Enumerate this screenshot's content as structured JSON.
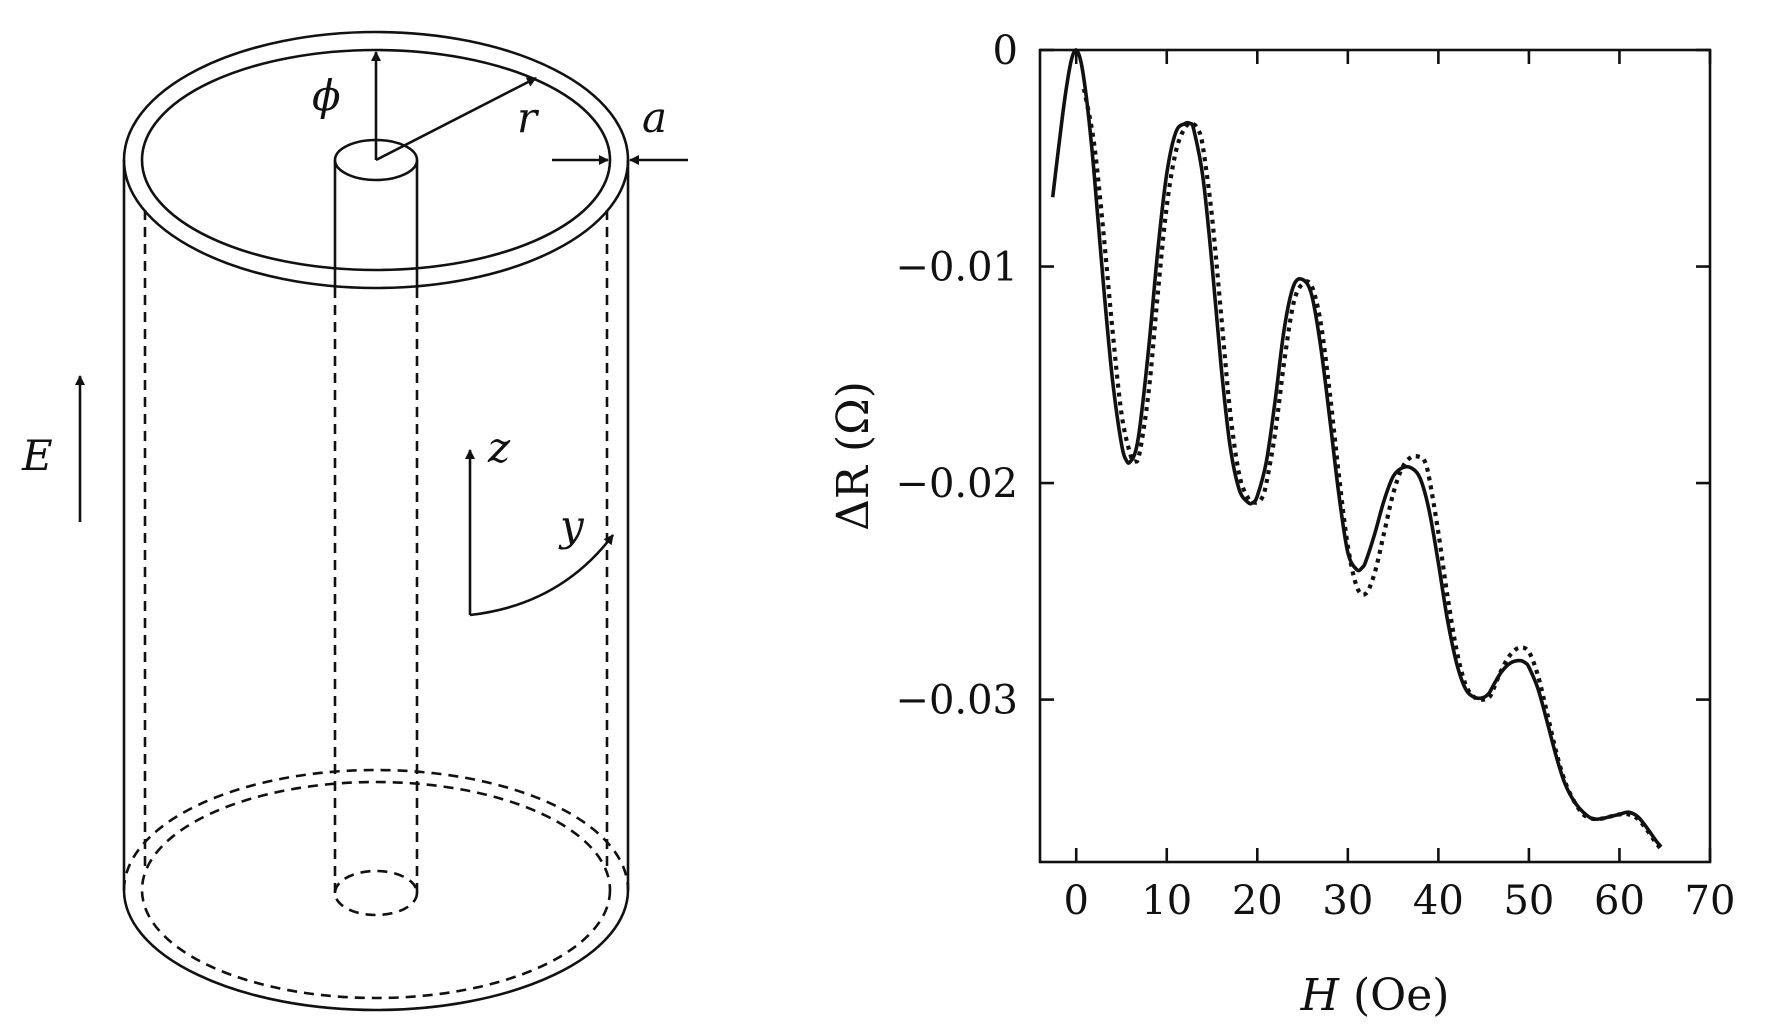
{
  "diagram": {
    "labels": {
      "phi": "ϕ",
      "r": "r",
      "a": "a",
      "E": "E",
      "z": "z",
      "y": "y"
    }
  },
  "chart_data": {
    "type": "line",
    "title": "",
    "xlabel_var": "H",
    "xlabel_unit": "(Oe)",
    "ylabel_var": "ΔR",
    "ylabel_unit": "(Ω)",
    "xlim": [
      -4,
      70
    ],
    "ylim": [
      -0.0375,
      0
    ],
    "xticks": [
      0,
      10,
      20,
      30,
      40,
      50,
      60,
      70
    ],
    "xtick_labels": [
      "0",
      "10",
      "20",
      "30",
      "40",
      "50",
      "60",
      "70"
    ],
    "yticks": [
      0,
      -0.01,
      -0.02,
      -0.03
    ],
    "ytick_labels": [
      "0",
      "−0.01",
      "−0.02",
      "−0.03"
    ],
    "grid": false,
    "legend": "none",
    "series": [
      {
        "style": "solid",
        "color": "#111111",
        "x": [
          -2.6,
          -2,
          -1.5,
          -1,
          -0.5,
          0,
          0.5,
          1,
          1.5,
          2,
          3,
          4,
          5,
          5.6,
          6,
          6.5,
          7,
          8,
          9,
          10,
          11,
          12,
          12.6,
          13,
          14,
          15,
          16,
          17,
          18,
          19,
          19.5,
          20,
          21,
          22,
          23,
          24,
          25,
          26,
          27,
          28,
          29,
          30,
          31,
          31.6,
          32,
          33,
          34,
          35,
          36,
          37,
          38,
          39,
          40,
          41,
          42,
          43,
          44,
          45,
          45.6,
          46,
          47,
          48,
          49,
          49.6,
          50,
          51,
          52,
          53,
          54,
          55,
          56,
          57,
          58,
          59,
          60,
          61,
          62,
          63,
          64,
          64.6
        ],
        "y": [
          -0.0068,
          -0.0047,
          -0.003,
          -0.0015,
          -0.0004,
          0,
          -0.0005,
          -0.0018,
          -0.0036,
          -0.0058,
          -0.0108,
          -0.0152,
          -0.0182,
          -0.019,
          -0.019,
          -0.0186,
          -0.0175,
          -0.0138,
          -0.0093,
          -0.0057,
          -0.0038,
          -0.0034,
          -0.0034,
          -0.0037,
          -0.0059,
          -0.0099,
          -0.0146,
          -0.0183,
          -0.0203,
          -0.0209,
          -0.0209,
          -0.0206,
          -0.019,
          -0.0161,
          -0.0128,
          -0.0109,
          -0.0106,
          -0.0113,
          -0.0137,
          -0.017,
          -0.0205,
          -0.0232,
          -0.024,
          -0.0239,
          -0.0236,
          -0.0223,
          -0.0208,
          -0.0197,
          -0.0193,
          -0.0193,
          -0.0198,
          -0.0213,
          -0.0237,
          -0.0263,
          -0.0283,
          -0.0295,
          -0.0299,
          -0.0299,
          -0.0297,
          -0.0294,
          -0.0287,
          -0.0283,
          -0.0282,
          -0.0283,
          -0.0285,
          -0.0295,
          -0.031,
          -0.0326,
          -0.0339,
          -0.0347,
          -0.0352,
          -0.0355,
          -0.0355,
          -0.0354,
          -0.0353,
          -0.0352,
          -0.0354,
          -0.0359,
          -0.0365,
          -0.0368
        ]
      },
      {
        "style": "dotted",
        "color": "#111111",
        "x": [
          0.8,
          1,
          2,
          3,
          4,
          5,
          6,
          6.5,
          7,
          8,
          9,
          10,
          11,
          12,
          12.8,
          13.5,
          14,
          15,
          16,
          17,
          18,
          19,
          19.8,
          20.5,
          21,
          22,
          23,
          24,
          25,
          26,
          27,
          28,
          29,
          30,
          31,
          32,
          33,
          34,
          35,
          36,
          37,
          38,
          38.5,
          39,
          40,
          41,
          42,
          43,
          44,
          45,
          45.6,
          46,
          47,
          48,
          49,
          50,
          51,
          52,
          53,
          54,
          55,
          56,
          57,
          58,
          59,
          60,
          61,
          62,
          63,
          64,
          64.8
        ],
        "y": [
          -0.0018,
          -0.0021,
          -0.0044,
          -0.0084,
          -0.0129,
          -0.0168,
          -0.0187,
          -0.019,
          -0.0186,
          -0.0158,
          -0.0113,
          -0.0072,
          -0.0047,
          -0.0036,
          -0.0034,
          -0.0037,
          -0.0045,
          -0.0077,
          -0.0122,
          -0.0167,
          -0.0196,
          -0.0207,
          -0.0209,
          -0.0207,
          -0.02,
          -0.0176,
          -0.0143,
          -0.0117,
          -0.0108,
          -0.0109,
          -0.0126,
          -0.0158,
          -0.0196,
          -0.0229,
          -0.0248,
          -0.0251,
          -0.0241,
          -0.0223,
          -0.0205,
          -0.0193,
          -0.0188,
          -0.0188,
          -0.019,
          -0.0198,
          -0.0223,
          -0.0252,
          -0.0277,
          -0.0293,
          -0.0299,
          -0.03,
          -0.0299,
          -0.0296,
          -0.0286,
          -0.0279,
          -0.0276,
          -0.0278,
          -0.0289,
          -0.0306,
          -0.0324,
          -0.0338,
          -0.0347,
          -0.0353,
          -0.0355,
          -0.0355,
          -0.0354,
          -0.0353,
          -0.0353,
          -0.0355,
          -0.036,
          -0.0366,
          -0.037
        ]
      }
    ]
  }
}
